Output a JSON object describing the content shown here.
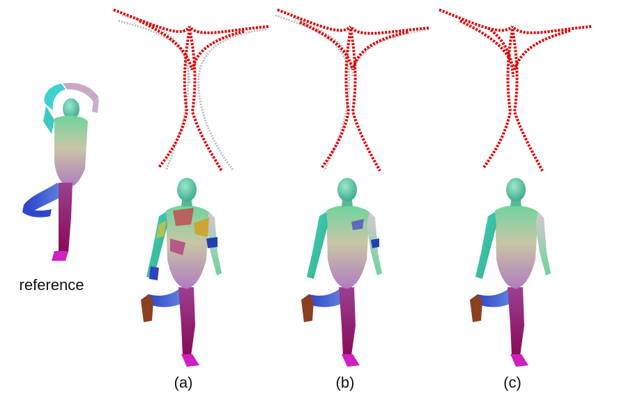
{
  "figure": {
    "reference_label": "reference",
    "panels": [
      {
        "id": "a",
        "caption": "(a)"
      },
      {
        "id": "b",
        "caption": "(b)"
      },
      {
        "id": "c",
        "caption": "(c)"
      }
    ]
  },
  "colors": {
    "correspondence_correct": "#e00000",
    "correspondence_wrong": "#b9b9b9",
    "skin_head": "#55c8a5",
    "skin_arm_left": "#40c8c0",
    "skin_torso": "#c8c89a",
    "skin_leg_lower": "#8a1060",
    "skin_foot": "#d020c0",
    "skin_thigh": "#4050c0"
  }
}
